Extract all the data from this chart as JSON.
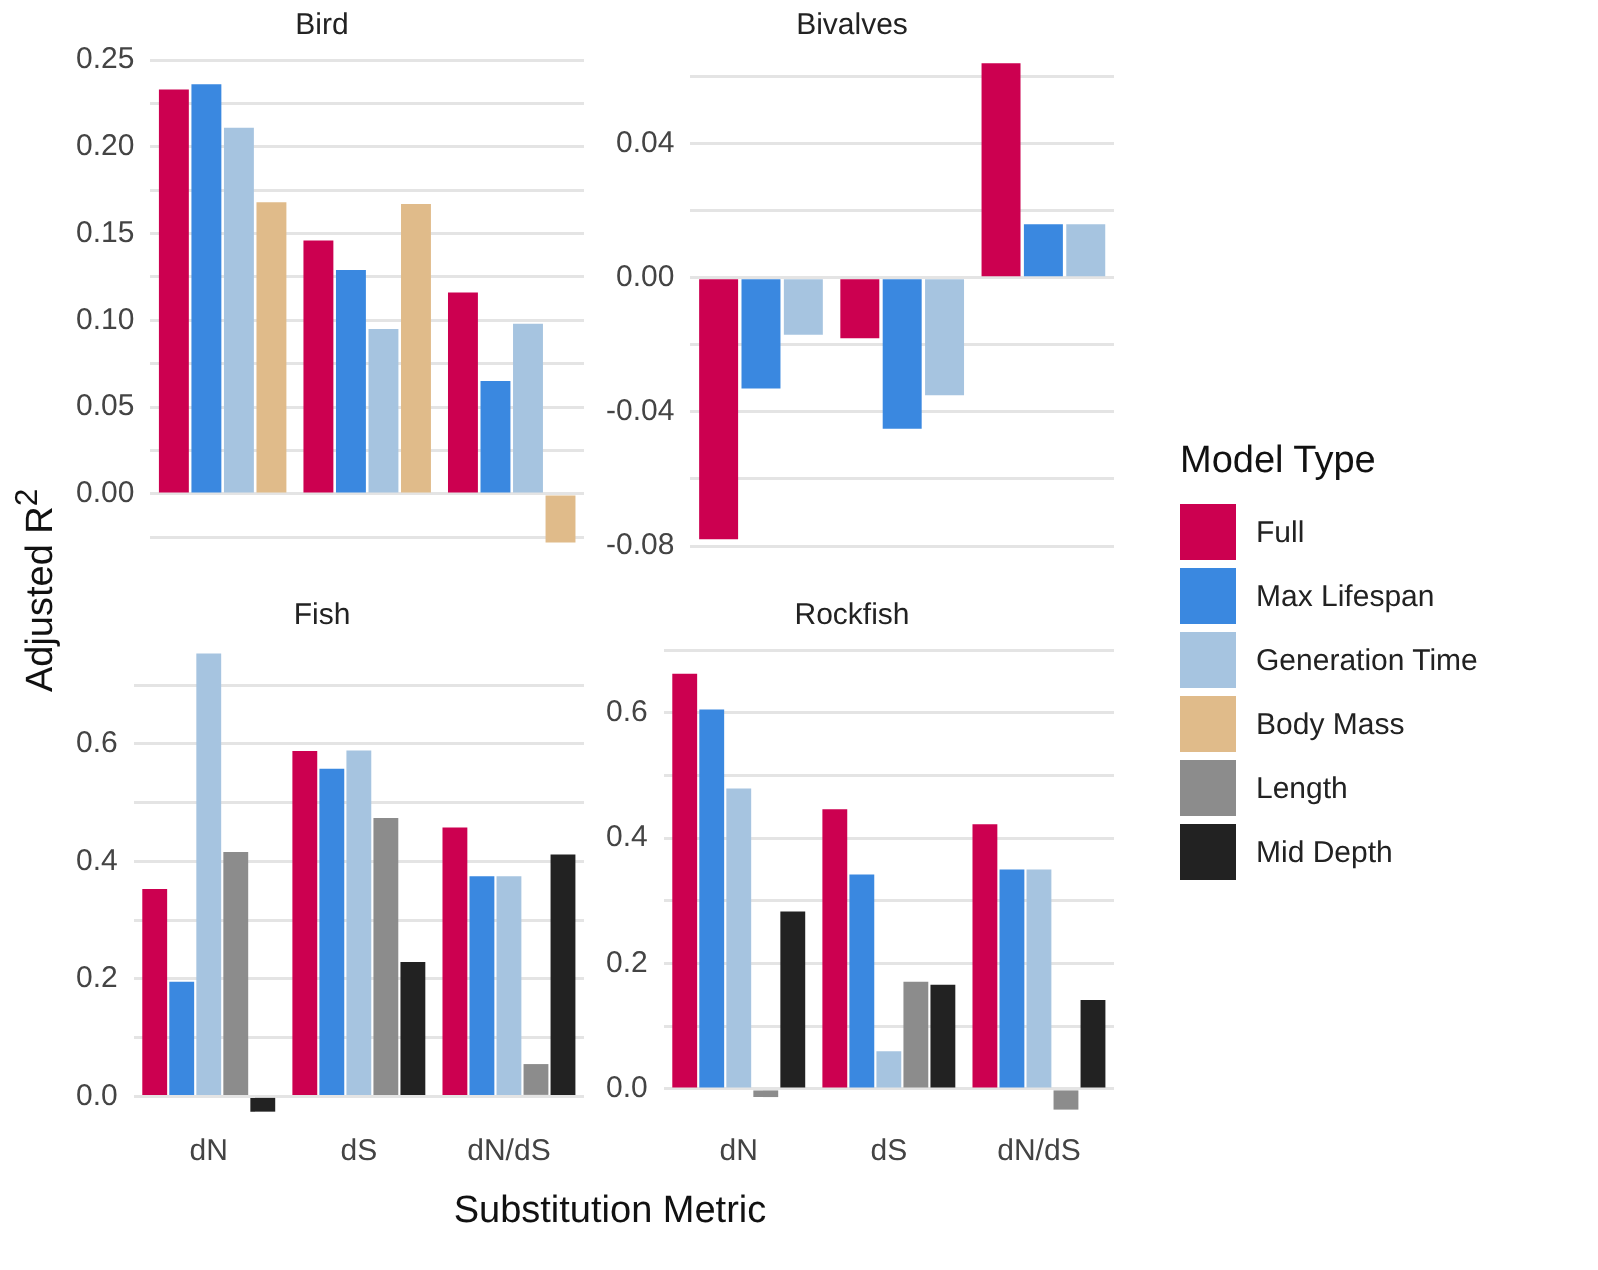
{
  "chart_data": [
    {
      "type": "bar",
      "title": "Bird",
      "ylabel": "Adjusted R$^{2}$",
      "legend_title": "Model Type",
      "categories": [
        "dN",
        "dS",
        "dN/dS"
      ],
      "tick_labels": "y",
      "grid": "y",
      "legend": "right",
      "ylim": [
        -0.03,
        0.25
      ],
      "yticks": [
        {
          "value": -0.025,
          "label": null
        },
        {
          "value": 0,
          "label": "0.00"
        },
        {
          "value": 0.025,
          "label": null
        },
        0.05,
        {
          "value": 0.075,
          "label": null
        },
        {
          "value": 0.1,
          "label": "0.10"
        },
        {
          "value": 0.125,
          "label": null
        },
        0.15,
        {
          "value": 0.175,
          "label": null
        },
        {
          "value": 0.2,
          "label": "0.20"
        },
        {
          "value": 0.225,
          "label": null
        },
        0.25
      ],
      "series": [
        {
          "name": "Full",
          "color": "#cc0050",
          "values": [
            0.233,
            0.146,
            0.116
          ]
        },
        {
          "name": "Max Lifespan",
          "color": "#3a88e0",
          "values": [
            0.236,
            0.129,
            0.065
          ]
        },
        {
          "name": "Generation Time",
          "color": "#a6c4e0",
          "values": [
            0.211,
            0.095,
            0.098
          ]
        },
        {
          "name": "Body Mass",
          "color": "#e0bb8a",
          "values": [
            0.168,
            0.167,
            -0.028
          ]
        }
      ]
    },
    {
      "type": "bar",
      "title": "Bivalves",
      "categories": [
        "dN",
        "dS",
        "dN/dS"
      ],
      "tick_labels": "y",
      "grid": "y",
      "legend": "right",
      "ylim": [
        -0.08,
        0.065
      ],
      "yticks": [
        -0.08,
        {
          "value": -0.06,
          "label": null
        },
        -0.04,
        {
          "value": -0.02,
          "label": null
        },
        {
          "value": 0,
          "label": "0.00"
        },
        {
          "value": 0.02,
          "label": null
        },
        0.04,
        {
          "value": 0.06,
          "label": null
        }
      ],
      "series": [
        {
          "name": "Full",
          "color": "#cc0050",
          "values": [
            -0.078,
            -0.018,
            0.064
          ]
        },
        {
          "name": "Max Lifespan",
          "color": "#3a88e0",
          "values": [
            -0.033,
            -0.045,
            0.016
          ]
        },
        {
          "name": "Generation Time",
          "color": "#a6c4e0",
          "values": [
            -0.017,
            -0.035,
            0.016
          ]
        }
      ]
    },
    {
      "type": "bar",
      "title": "Fish",
      "xlabel": "Substitution Metric",
      "categories": [
        "dN",
        "dS",
        "dN/dS"
      ],
      "grid": "y",
      "legend": "right",
      "ylim": [
        -0.03,
        0.76
      ],
      "yticks": [
        {
          "value": 0,
          "label": "0.0"
        },
        {
          "value": 0.1,
          "label": null
        },
        0.2,
        {
          "value": 0.3,
          "label": null
        },
        0.4,
        {
          "value": 0.5,
          "label": null
        },
        0.6,
        {
          "value": 0.7,
          "label": null
        }
      ],
      "series": [
        {
          "name": "Full",
          "color": "#cc0050",
          "values": [
            0.353,
            0.588,
            0.458
          ]
        },
        {
          "name": "Max Lifespan",
          "color": "#3a88e0",
          "values": [
            0.195,
            0.558,
            0.375
          ]
        },
        {
          "name": "Generation Time",
          "color": "#a6c4e0",
          "values": [
            0.754,
            0.589,
            0.375
          ]
        },
        {
          "name": "Length",
          "color": "#8c8c8c",
          "values": [
            0.416,
            0.474,
            0.055
          ]
        },
        {
          "name": "Mid Depth",
          "color": "#222222",
          "values": [
            -0.026,
            0.229,
            0.412
          ]
        }
      ]
    },
    {
      "type": "bar",
      "title": "Rockfish",
      "categories": [
        "dN",
        "dS",
        "dN/dS"
      ],
      "grid": "y",
      "legend": "right",
      "ylim": [
        -0.04,
        0.7
      ],
      "yticks": [
        {
          "value": 0,
          "label": "0.0"
        },
        {
          "value": 0.1,
          "label": null
        },
        0.2,
        {
          "value": 0.3,
          "label": null
        },
        0.4,
        {
          "value": 0.5,
          "label": null
        },
        0.6,
        {
          "value": 0.7,
          "label": null
        }
      ],
      "series": [
        {
          "name": "Full",
          "color": "#cc0050",
          "values": [
            0.662,
            0.446,
            0.422
          ]
        },
        {
          "name": "Max Lifespan",
          "color": "#3a88e0",
          "values": [
            0.605,
            0.342,
            0.35
          ]
        },
        {
          "name": "Generation Time",
          "color": "#a6c4e0",
          "values": [
            0.479,
            0.06,
            0.35
          ]
        },
        {
          "name": "Length",
          "color": "#8c8c8c",
          "values": [
            -0.013,
            0.171,
            -0.033
          ]
        },
        {
          "name": "Mid Depth",
          "color": "#222222",
          "values": [
            0.283,
            0.166,
            0.142
          ]
        }
      ]
    }
  ]
}
